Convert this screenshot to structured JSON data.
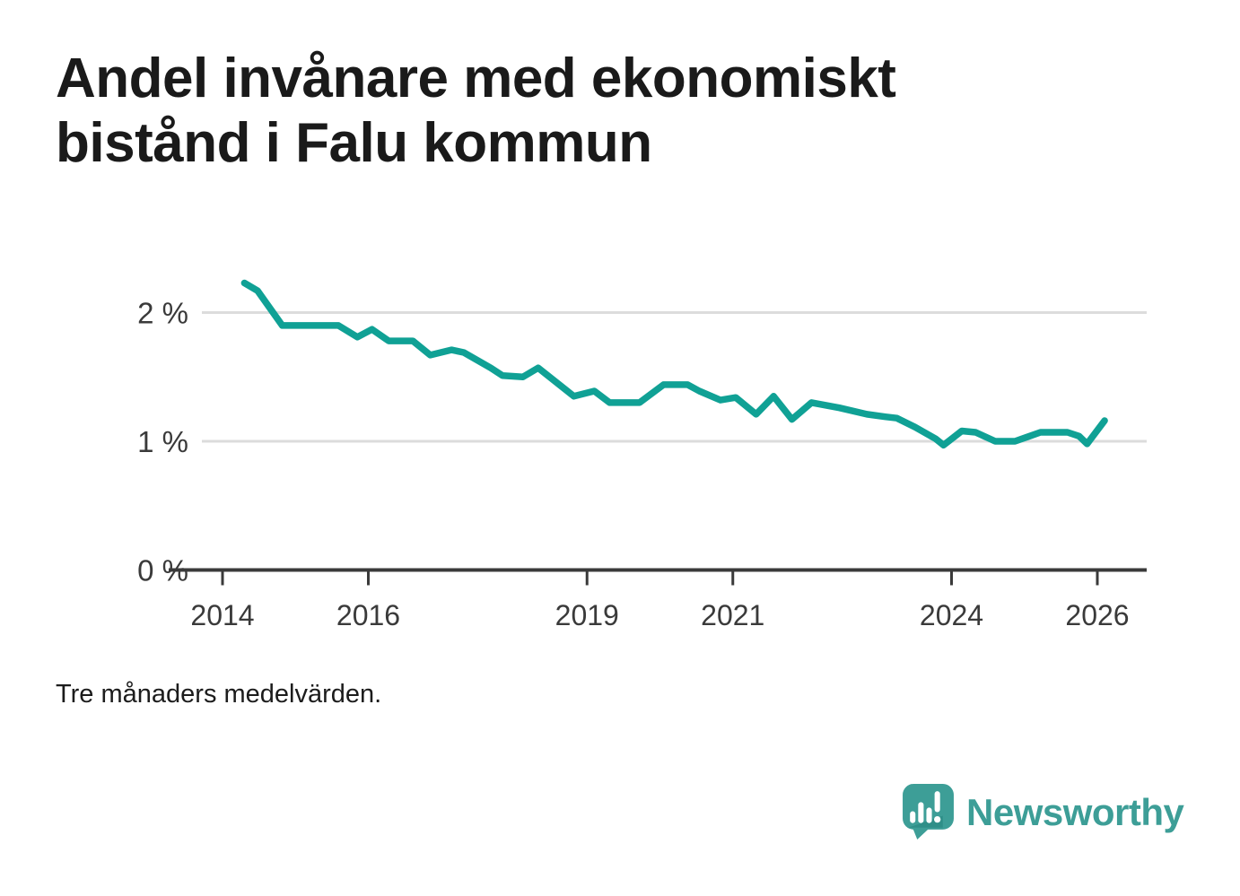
{
  "header": {
    "title": "Andel invånare med ekonomiskt bistånd i Falu kommun"
  },
  "footnote": {
    "text": "Tre månaders medelvärden."
  },
  "logo": {
    "text": "Newsworthy",
    "mark": "speech-bubble-with-bar-chart-and-exclamation"
  },
  "colors": {
    "line": "#10a195",
    "gridline": "#dcdcdc",
    "axis": "#3a3a3a",
    "title": "#1a1a1a",
    "logo_teal": "#3d9e97",
    "background": "#ffffff"
  },
  "chart_data": {
    "type": "line",
    "title": "Andel invånare med ekonomiskt bistånd i Falu kommun",
    "subtitle": "",
    "xlabel": "",
    "ylabel": "",
    "legend": "none",
    "grid": "horizontal gridlines at 1 % and 2 %, dark baseline at 0 %",
    "xlim": [
      2013.25,
      2026.65
    ],
    "ylim": [
      0,
      2.4
    ],
    "x_ticks": [
      2014,
      2016,
      2019,
      2021,
      2024,
      2026
    ],
    "y_ticks": [
      {
        "value": 2,
        "label": "2 %"
      },
      {
        "value": 1,
        "label": "1 %"
      },
      {
        "value": 0,
        "label": "0 %"
      }
    ],
    "unit": "percent of inhabitants",
    "series": [
      {
        "name": "Andel invånare med ekonomiskt bistånd (%)",
        "x": [
          2014.3,
          2014.48,
          2014.82,
          2015.59,
          2015.85,
          2016.05,
          2016.28,
          2016.61,
          2016.85,
          2017.14,
          2017.31,
          2017.68,
          2017.84,
          2018.12,
          2018.33,
          2018.82,
          2019.1,
          2019.31,
          2019.72,
          2020.05,
          2020.38,
          2020.54,
          2020.83,
          2021.04,
          2021.32,
          2021.56,
          2021.81,
          2022.08,
          2022.46,
          2022.84,
          2023.09,
          2023.25,
          2023.5,
          2023.78,
          2023.89,
          2024.14,
          2024.33,
          2024.6,
          2024.87,
          2025.22,
          2025.59,
          2025.75,
          2025.86,
          2026.1
        ],
        "y": [
          2.23,
          2.17,
          1.9,
          1.9,
          1.81,
          1.87,
          1.78,
          1.78,
          1.67,
          1.71,
          1.69,
          1.57,
          1.51,
          1.5,
          1.57,
          1.35,
          1.39,
          1.3,
          1.3,
          1.44,
          1.44,
          1.39,
          1.32,
          1.34,
          1.21,
          1.35,
          1.17,
          1.3,
          1.26,
          1.21,
          1.19,
          1.18,
          1.11,
          1.02,
          0.97,
          1.08,
          1.07,
          1.0,
          1.0,
          1.07,
          1.07,
          1.04,
          0.98,
          1.16
        ]
      }
    ]
  }
}
